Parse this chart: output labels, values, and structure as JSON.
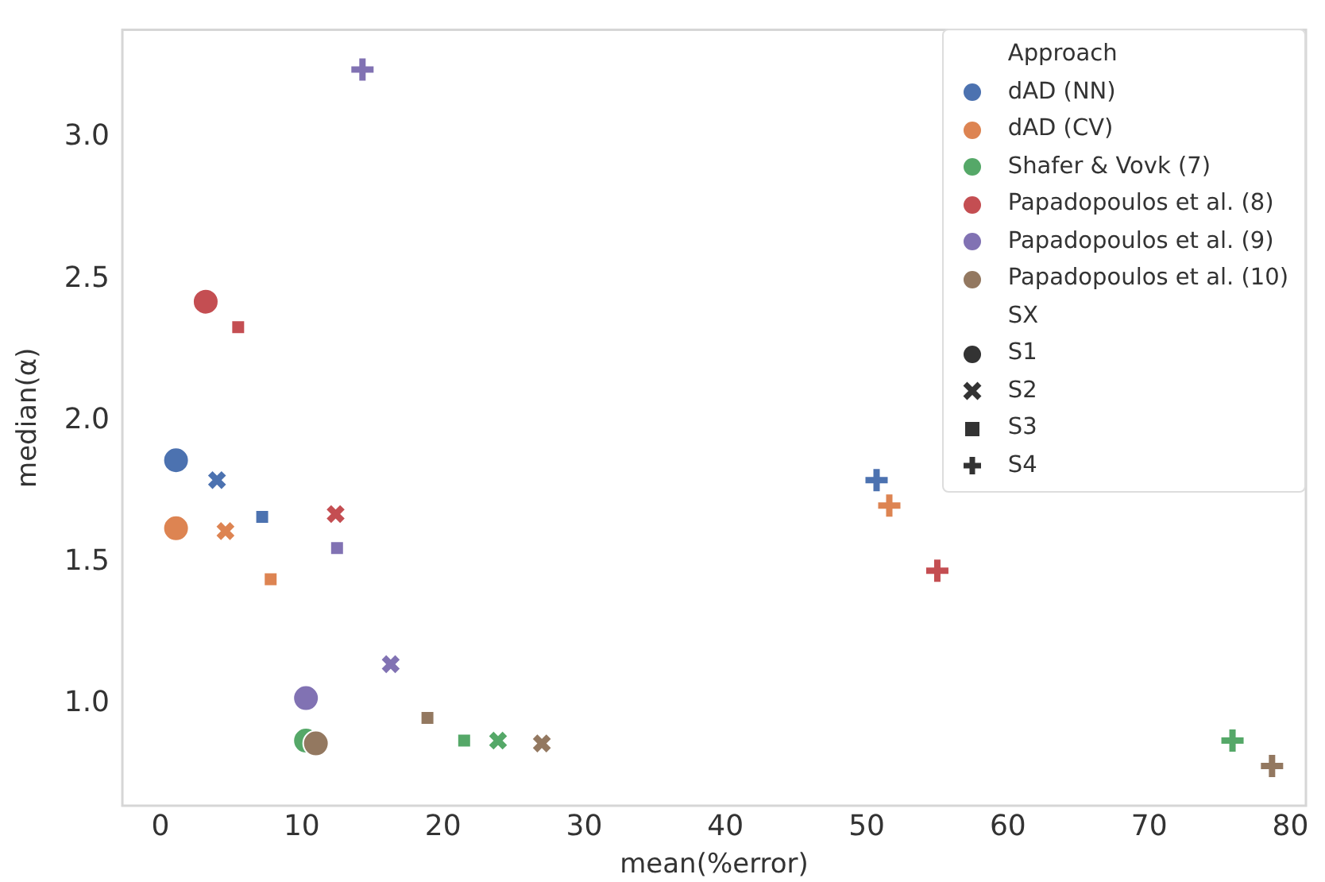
{
  "chart_data": {
    "type": "scatter",
    "xlabel": "mean(%error)",
    "ylabel": "median(α)",
    "legend": "top right",
    "legend_title": "Approach",
    "xlim": [
      -2.7,
      81.1
    ],
    "xticks": [
      0,
      10,
      20,
      30,
      40,
      50,
      60,
      70,
      80
    ],
    "ylim": [
      0.64,
      3.38
    ],
    "yticks": [
      {
        "value": 1,
        "label": "1.0"
      },
      1.5,
      {
        "value": 2,
        "label": "2.0"
      },
      2.5,
      {
        "value": 3,
        "label": "3.0"
      }
    ],
    "grid": false,
    "annotations": [
      "SX",
      "S1",
      "S2",
      "S3",
      "S4"
    ],
    "series": [
      {
        "name": "dAD (NN)",
        "color": "#4c72b0",
        "marker": [
          "circle",
          "cross",
          "square",
          "plus"
        ],
        "x": [
          1.1,
          4.0,
          7.2,
          50.7
        ],
        "values": [
          1.86,
          1.79,
          1.66,
          1.79
        ]
      },
      {
        "name": "dAD (CV)",
        "color": "#dd8452",
        "marker": [
          "circle",
          "cross",
          "square",
          "plus"
        ],
        "x": [
          1.1,
          4.6,
          7.8,
          51.6
        ],
        "values": [
          1.62,
          1.61,
          1.44,
          1.7
        ]
      },
      {
        "name": "Shafer & Vovk (7)",
        "color": "#55a868",
        "marker": [
          "circle",
          "cross",
          "square",
          "plus"
        ],
        "x": [
          10.3,
          23.9,
          21.5,
          75.9
        ],
        "values": [
          0.87,
          0.87,
          0.87,
          0.87
        ]
      },
      {
        "name": "Papadopoulos et al. (8)",
        "color": "#c44e52",
        "marker": [
          "circle",
          "cross",
          "square",
          "plus"
        ],
        "x": [
          3.2,
          12.4,
          5.5,
          55.0
        ],
        "values": [
          2.42,
          1.67,
          2.33,
          1.47
        ]
      },
      {
        "name": "Papadopoulos et al. (9)",
        "color": "#8172b3",
        "marker": [
          "circle",
          "cross",
          "square",
          "plus"
        ],
        "x": [
          10.3,
          16.3,
          12.5,
          14.3
        ],
        "values": [
          1.02,
          1.14,
          1.55,
          3.24
        ]
      },
      {
        "name": "Papadopoulos et al. (10)",
        "color": "#937860",
        "marker": [
          "circle",
          "cross",
          "square",
          "plus"
        ],
        "x": [
          11.0,
          27.0,
          18.9,
          78.7
        ],
        "values": [
          0.86,
          0.86,
          0.95,
          0.78
        ]
      }
    ]
  }
}
